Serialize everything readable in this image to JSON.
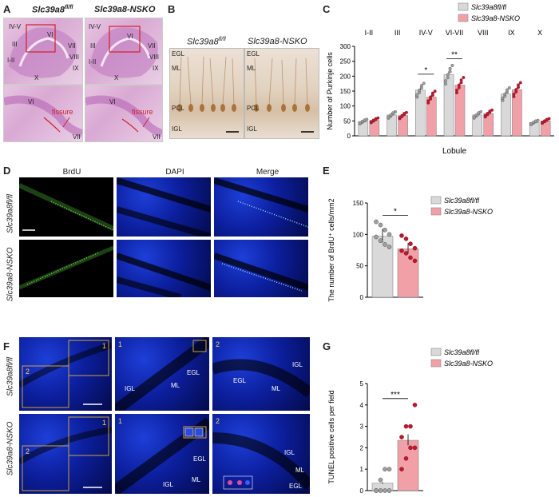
{
  "panels": {
    "A": {
      "label": "A",
      "title_left": "Slc39a8",
      "title_left_sup": "fl/fl",
      "title_right": "Slc39a8-NSKO",
      "lobule_labels": [
        "IV-V",
        "VI",
        "III",
        "I-II",
        "X",
        "IX",
        "VIII",
        "VII"
      ],
      "fissure_label": "fissure",
      "zoom_labels": [
        "VI",
        "VII"
      ]
    },
    "B": {
      "label": "B",
      "title_left": "Slc39a8",
      "title_left_sup": "fl/fl",
      "title_right": "Slc39a8-NSKO",
      "layers": [
        "EGL",
        "ML",
        "PCL",
        "IGL"
      ]
    },
    "C": {
      "label": "C",
      "legend": [
        "Slc39a8fl/fl",
        "Slc39a8-NSKO"
      ]
    },
    "D": {
      "label": "D",
      "columns": [
        "BrdU",
        "DAPI",
        "Merge"
      ],
      "rows": [
        "Slc39a8fl/fl",
        "Slc39a8-NSKO"
      ]
    },
    "E": {
      "label": "E",
      "legend": [
        "Slc39a8fl/fl",
        "Slc39a8-NSKO"
      ]
    },
    "F": {
      "label": "F",
      "rows": [
        "Slc39a8fl/fl",
        "Slc39a8-NSKO"
      ],
      "box_labels": [
        "1",
        "2"
      ],
      "layer_labels": [
        "IGL",
        "ML",
        "EGL"
      ]
    },
    "G": {
      "label": "G",
      "legend": [
        "Slc39a8fl/fl",
        "Slc39a8-NSKO"
      ]
    }
  },
  "colors": {
    "control_bar": "#d9d9d9",
    "nsko_bar": "#f2a0a8",
    "control_dot": "#a0a0a0",
    "nsko_dot": "#d0102a"
  },
  "chart_data": [
    {
      "panel": "C",
      "type": "bar",
      "ylabel": "Number of Purkinje cells",
      "xlabel": "Lobule",
      "ylim": [
        0,
        300
      ],
      "yticks": [
        0,
        50,
        100,
        150,
        200,
        250,
        300
      ],
      "categories": [
        "I-II",
        "III",
        "IV-V",
        "VI-VII",
        "VIII",
        "IX",
        "X"
      ],
      "series": [
        {
          "name": "Slc39a8fl/fl",
          "values": [
            48,
            70,
            153,
            205,
            70,
            140,
            45
          ]
        },
        {
          "name": "Slc39a8-NSKO",
          "values": [
            52,
            68,
            130,
            170,
            75,
            155,
            50
          ]
        }
      ],
      "significance": [
        {
          "category": "IV-V",
          "label": "*"
        },
        {
          "category": "VI-VII",
          "label": "**"
        }
      ]
    },
    {
      "panel": "E",
      "type": "bar",
      "ylabel": "The number of BrdU⁺ cells/mm2",
      "ylim": [
        0,
        150
      ],
      "yticks": [
        0,
        50,
        100,
        150
      ],
      "categories": [
        "Slc39a8fl/fl",
        "Slc39a8-NSKO"
      ],
      "series": [
        {
          "values": [
            97,
            77
          ]
        }
      ],
      "points": [
        [
          120,
          115,
          107,
          100,
          96,
          90,
          84,
          80
        ],
        [
          98,
          93,
          85,
          78,
          74,
          70,
          63,
          58
        ]
      ],
      "significance": "*"
    },
    {
      "panel": "G",
      "type": "bar",
      "ylabel": "TUNEL positive cells per field",
      "ylim": [
        0,
        5
      ],
      "yticks": [
        0,
        1,
        2,
        3,
        4,
        5
      ],
      "categories": [
        "Slc39a8fl/fl",
        "Slc39a8-NSKO"
      ],
      "series": [
        {
          "values": [
            0.35,
            2.35
          ]
        }
      ],
      "points": [
        [
          0,
          0,
          0,
          0,
          0,
          0.5,
          1,
          1
        ],
        [
          1,
          1.5,
          2,
          2,
          2.5,
          3,
          3,
          4
        ]
      ],
      "significance": "***"
    }
  ]
}
